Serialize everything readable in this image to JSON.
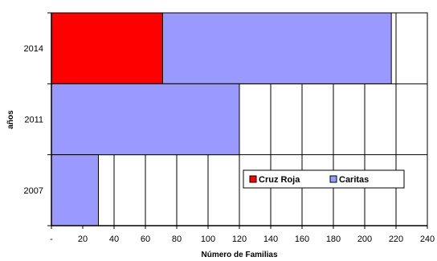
{
  "chart_data": {
    "type": "bar",
    "orientation": "horizontal",
    "stacked": true,
    "categories": [
      "2014",
      "2011",
      "2007"
    ],
    "series": [
      {
        "name": "Cruz Roja",
        "values": [
          71,
          0,
          0
        ],
        "color": "#ff0000"
      },
      {
        "name": "Caritas",
        "values": [
          146,
          120,
          30
        ],
        "color": "#9999ff"
      }
    ],
    "xlabel": "Número de Familias",
    "ylabel": "años",
    "xlim": [
      0,
      240
    ],
    "x_ticks": [
      "-",
      "20",
      "40",
      "60",
      "80",
      "100",
      "120",
      "140",
      "160",
      "180",
      "200",
      "220",
      "240"
    ],
    "grid": "vertical",
    "legend": "inside-right"
  }
}
